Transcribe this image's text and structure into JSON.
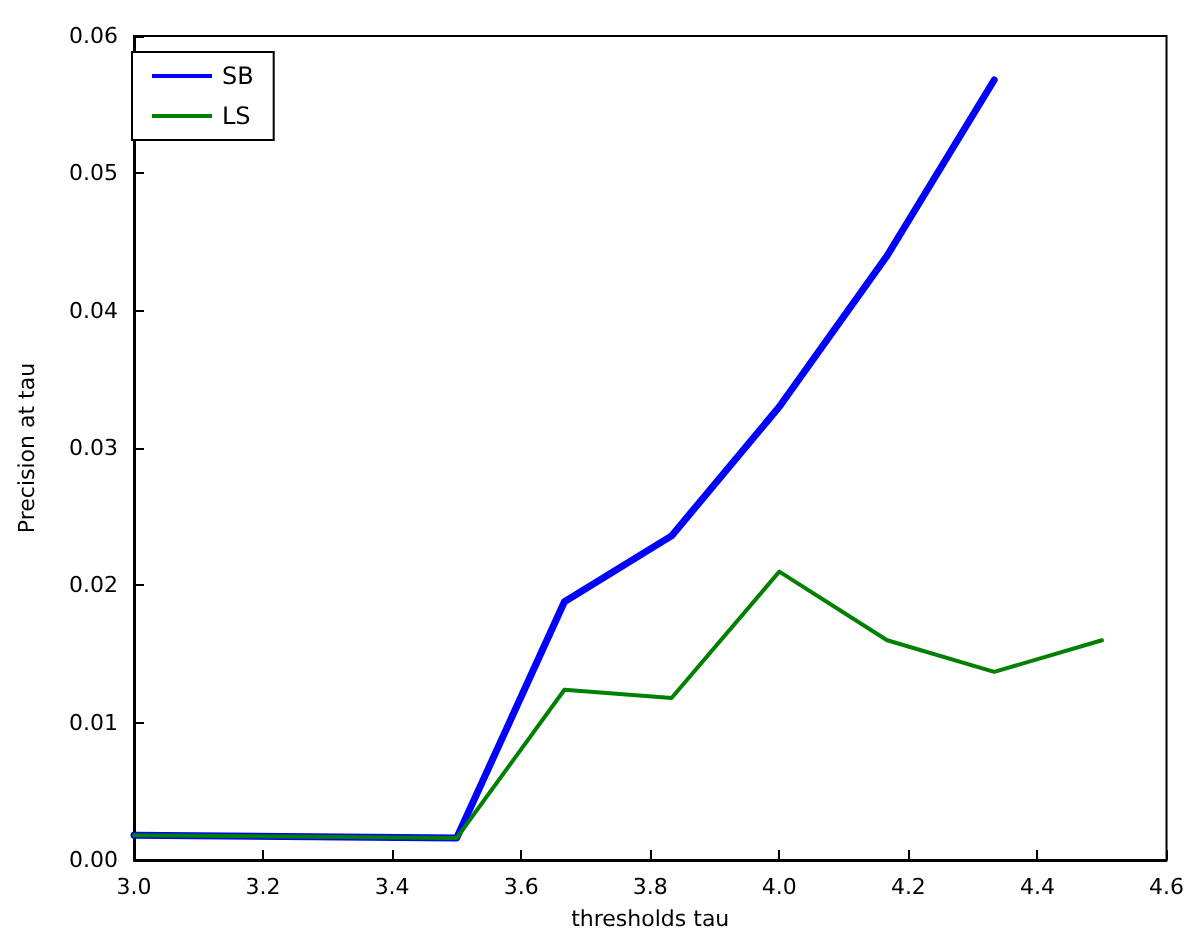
{
  "chart_data": {
    "type": "line",
    "xlabel": "thresholds tau",
    "ylabel": "Precision at tau",
    "x": [
      3.0,
      3.5,
      3.667,
      3.833,
      4.0,
      4.167,
      4.333,
      4.5
    ],
    "series": [
      {
        "name": "SB",
        "color": "#0000ff",
        "values": [
          0.0018,
          0.0016,
          0.0188,
          0.0236,
          0.033,
          0.044,
          0.0568,
          null
        ]
      },
      {
        "name": "LS",
        "color": "#008000",
        "values": [
          0.0018,
          0.0016,
          0.0124,
          0.0118,
          0.021,
          0.016,
          0.0137,
          0.016
        ]
      }
    ],
    "xlim": [
      3.0,
      4.6
    ],
    "xticks": [
      {
        "value": 3.0,
        "label": "3.0"
      },
      {
        "value": 3.2,
        "label": "3.2"
      },
      {
        "value": 3.4,
        "label": "3.4"
      },
      {
        "value": 3.6,
        "label": "3.6"
      },
      {
        "value": 3.8,
        "label": "3.8"
      },
      {
        "value": 4.0,
        "label": "4.0"
      },
      {
        "value": 4.2,
        "label": "4.2"
      },
      {
        "value": 4.4,
        "label": "4.4"
      },
      {
        "value": 4.6,
        "label": "4.6"
      }
    ],
    "ylim": [
      0,
      0.06
    ],
    "yticks": [
      {
        "value": 0,
        "label": "0.00"
      },
      {
        "value": 0.01,
        "label": "0.01"
      },
      {
        "value": 0.02,
        "label": "0.02"
      },
      {
        "value": 0.03,
        "label": "0.03"
      },
      {
        "value": 0.04,
        "label": "0.04"
      },
      {
        "value": 0.05,
        "label": "0.05"
      },
      {
        "value": 0.06,
        "label": "0.06"
      }
    ],
    "grid": false,
    "legend": "top left",
    "marker": "none",
    "line_style": "solid"
  }
}
